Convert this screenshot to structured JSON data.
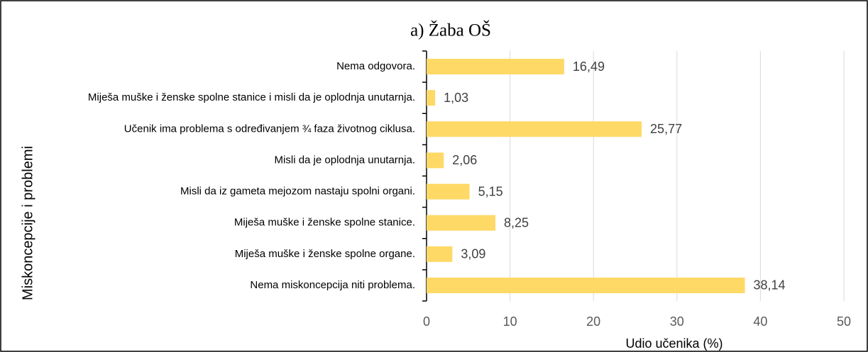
{
  "chart_data": {
    "type": "barh",
    "title": "a) Žaba OŠ",
    "categories": [
      "Nema odgovora.",
      "Miješa muške i ženske spolne stanice i misli da je oplodnja unutarnja.",
      "Učenik ima problema s određivanjem ¾ faza životnog ciklusa.",
      "Misli da je oplodnja unutarnja.",
      "Misli da iz gameta mejozom nastaju spolni organi.",
      "Miješa muške i ženske spolne stanice.",
      "Miješa muške i ženske spolne organe.",
      "Nema miskoncepcija niti problema."
    ],
    "values": [
      16.49,
      1.03,
      25.77,
      2.06,
      5.15,
      8.25,
      3.09,
      38.14
    ],
    "value_labels": [
      "16,49",
      "1,03",
      "25,77",
      "2,06",
      "5,15",
      "8,25",
      "3,09",
      "38,14"
    ],
    "color": "#ffd966",
    "xlabel": "Udio učenika (%)",
    "ylabel": "Miskoncepcije i problemi",
    "xlim": [
      0,
      50
    ],
    "xticks": [
      0,
      10,
      20,
      30,
      40,
      50
    ],
    "grid": true
  }
}
